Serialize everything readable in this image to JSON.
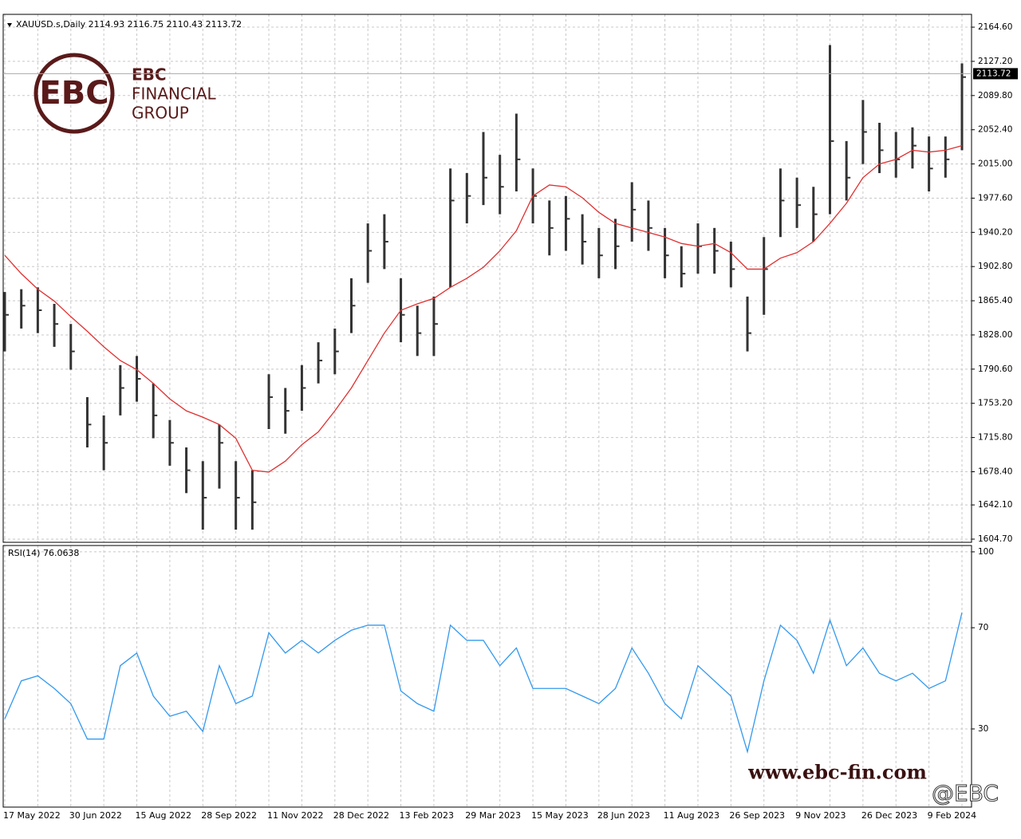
{
  "chart_data": [
    {
      "type": "candlestick",
      "title": "XAUUSD.s,Daily  2114.93 2116.75 2110.43 2113.72",
      "series": [
        {
          "name": "close",
          "color": "#333333",
          "values": [
            1850,
            1860,
            1855,
            1840,
            1810,
            1730,
            1710,
            1770,
            1780,
            1740,
            1710,
            1680,
            1650,
            1710,
            1650,
            1645,
            1760,
            1745,
            1770,
            1800,
            1810,
            1860,
            1920,
            1930,
            1850,
            1830,
            1840,
            1975,
            1980,
            2000,
            1990,
            2020,
            1980,
            1945,
            1955,
            1930,
            1915,
            1925,
            1965,
            1945,
            1915,
            1895,
            1925,
            1920,
            1900,
            1830,
            1900,
            1975,
            1970,
            1960,
            2040,
            2000,
            2050,
            2030,
            2020,
            2035,
            2010,
            2020,
            2110
          ]
        },
        {
          "name": "high",
          "color": "#333333",
          "values": [
            1875,
            1878,
            1880,
            1862,
            1840,
            1760,
            1740,
            1795,
            1805,
            1775,
            1735,
            1705,
            1690,
            1730,
            1690,
            1680,
            1785,
            1770,
            1795,
            1820,
            1835,
            1890,
            1950,
            1960,
            1890,
            1860,
            1870,
            2010,
            2005,
            2050,
            2025,
            2070,
            2010,
            1975,
            1980,
            1960,
            1945,
            1955,
            1995,
            1975,
            1945,
            1925,
            1950,
            1945,
            1930,
            1870,
            1935,
            2010,
            2000,
            1990,
            2145,
            2040,
            2085,
            2060,
            2050,
            2055,
            2045,
            2045,
            2125
          ]
        },
        {
          "name": "low",
          "color": "#333333",
          "values": [
            1810,
            1835,
            1830,
            1815,
            1790,
            1705,
            1680,
            1740,
            1755,
            1715,
            1685,
            1655,
            1615,
            1660,
            1615,
            1615,
            1725,
            1720,
            1745,
            1775,
            1785,
            1830,
            1885,
            1900,
            1820,
            1805,
            1805,
            1880,
            1950,
            1970,
            1960,
            1985,
            1950,
            1915,
            1920,
            1905,
            1890,
            1900,
            1930,
            1920,
            1890,
            1880,
            1895,
            1895,
            1880,
            1810,
            1850,
            1935,
            1945,
            1930,
            1960,
            1975,
            2015,
            2005,
            2000,
            2010,
            1985,
            2000,
            2030
          ]
        },
        {
          "name": "MA",
          "color": "#e03030",
          "values": [
            1915,
            1895,
            1878,
            1865,
            1848,
            1832,
            1815,
            1800,
            1790,
            1775,
            1758,
            1745,
            1738,
            1730,
            1715,
            1680,
            1678,
            1690,
            1708,
            1722,
            1745,
            1770,
            1800,
            1830,
            1855,
            1862,
            1868,
            1880,
            1890,
            1902,
            1920,
            1942,
            1980,
            1992,
            1990,
            1978,
            1962,
            1950,
            1945,
            1940,
            1935,
            1928,
            1925,
            1928,
            1918,
            1900,
            1900,
            1912,
            1918,
            1930,
            1950,
            1972,
            2000,
            2015,
            2020,
            2030,
            2028,
            2030,
            2035
          ]
        }
      ],
      "last_price": 2113.72,
      "ylim": [
        1601.2,
        2178.6
      ],
      "yticks": [
        {
          "value": 1604.7,
          "label": "1604.70"
        },
        {
          "value": 1642.1,
          "label": "1642.10"
        },
        {
          "value": 1678.4,
          "label": "1678.40"
        },
        {
          "value": 1715.8,
          "label": "1715.80"
        },
        {
          "value": 1753.2,
          "label": "1753.20"
        },
        {
          "value": 1790.6,
          "label": "1790.60"
        },
        {
          "value": 1828,
          "label": "1828.00"
        },
        {
          "value": 1865.4,
          "label": "1865.40"
        },
        {
          "value": 1902.8,
          "label": "1902.80"
        },
        {
          "value": 1940.2,
          "label": "1940.20"
        },
        {
          "value": 1977.6,
          "label": "1977.60"
        },
        {
          "value": 2015,
          "label": "2015.00"
        },
        {
          "value": 2052.4,
          "label": "2052.40"
        },
        {
          "value": 2089.8,
          "label": "2089.80"
        },
        {
          "value": 2127.2,
          "label": "2127.20"
        },
        {
          "value": 2164.6,
          "label": "2164.60"
        }
      ],
      "grid": true
    },
    {
      "type": "line",
      "title": "RSI(14) 76.0638",
      "categories": [
        "17 May 2022",
        null,
        null,
        null,
        "30 Jun 2022",
        null,
        null,
        null,
        "15 Aug 2022",
        null,
        null,
        null,
        "28 Sep 2022",
        null,
        null,
        null,
        "11 Nov 2022",
        null,
        null,
        null,
        "28 Dec 2022",
        null,
        null,
        null,
        "13 Feb 2023",
        null,
        null,
        null,
        "29 Mar 2023",
        null,
        null,
        null,
        "15 May 2023",
        null,
        null,
        null,
        "28 Jun 2023",
        null,
        null,
        null,
        "11 Aug 2023",
        null,
        null,
        null,
        "26 Sep 2023",
        null,
        null,
        null,
        "9 Nov 2023",
        null,
        null,
        null,
        "26 Dec 2023",
        null,
        null,
        null,
        "9 Feb 2024",
        null,
        null
      ],
      "series": [
        {
          "name": "RSI(14)",
          "color": "#3399ee",
          "values": [
            34,
            49,
            51,
            46,
            40,
            26,
            26,
            55,
            60,
            43,
            35,
            37,
            29,
            55,
            40,
            43,
            68,
            60,
            65,
            60,
            65,
            69,
            71,
            71,
            45,
            40,
            37,
            71,
            65,
            65,
            55,
            62,
            46,
            46,
            46,
            43,
            40,
            46,
            62,
            52,
            40,
            34,
            55,
            49,
            43,
            21,
            49,
            71,
            65,
            52,
            73,
            55,
            62,
            52,
            49,
            52,
            46,
            49,
            76
          ]
        }
      ],
      "ylim": [
        -0.9,
        102.5
      ],
      "yticks": [
        30,
        70,
        100
      ],
      "grid": true
    }
  ],
  "watermark": {
    "logo": "EBC",
    "line1": "FINANCIAL",
    "line2": "GROUP",
    "url": "www.ebc-fin.com",
    "handle": "@EBC"
  }
}
